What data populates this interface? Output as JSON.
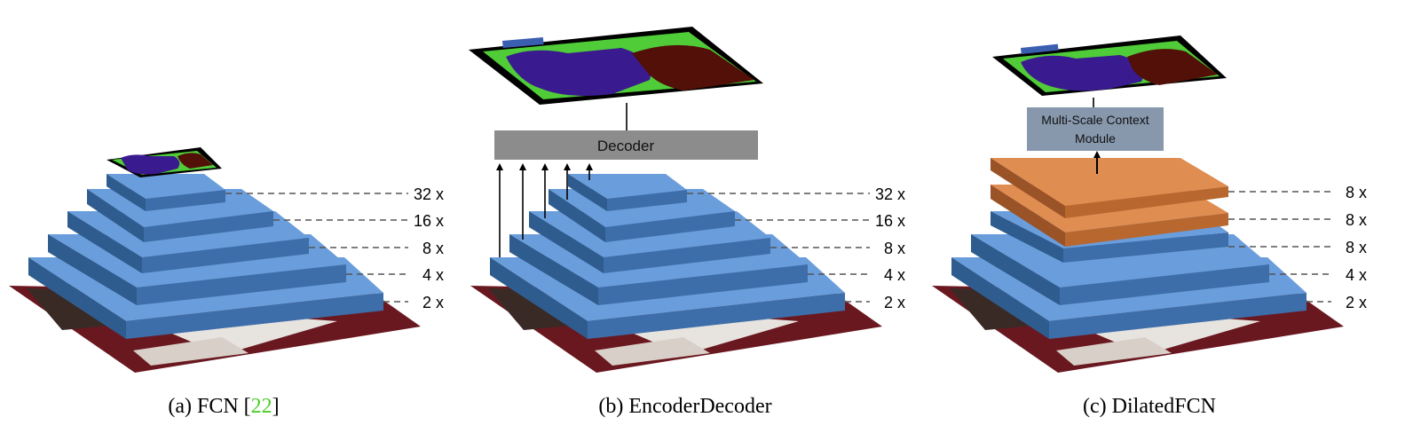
{
  "colors": {
    "layer_top": "#6a9ddb",
    "layer_side": "#2f5c8e",
    "layer_front": "#3d6ea9",
    "dilated_top": "#e08d52",
    "dilated_side": "#9a5227",
    "dilated_front": "#b8672f",
    "decoder_fill": "#8c8c8c",
    "context_fill": "#8798ad",
    "citation": "#4ccd2c",
    "seg_background": "#4fcc38",
    "seg_cat": "#3a1a8f",
    "seg_dog": "#521008",
    "seg_void": "#000000",
    "photo_carpet": "#6a1820"
  },
  "panels": [
    {
      "id": "a",
      "caption_prefix": "(a) FCN [",
      "caption_citation": "22",
      "caption_suffix": "]",
      "scale_labels": [
        "32 x",
        "16 x",
        "8 x",
        "4 x",
        "2 x"
      ]
    },
    {
      "id": "b",
      "caption": "(b) EncoderDecoder",
      "decoder_label": "Decoder",
      "scale_labels": [
        "32 x",
        "16 x",
        "8 x",
        "4 x",
        "2 x"
      ]
    },
    {
      "id": "c",
      "caption": "(c) DilatedFCN",
      "context_label_line1": "Multi-Scale Context",
      "context_label_line2": "Module",
      "scale_labels": [
        "8 x",
        "8 x",
        "8 x",
        "4 x",
        "2 x"
      ]
    }
  ]
}
